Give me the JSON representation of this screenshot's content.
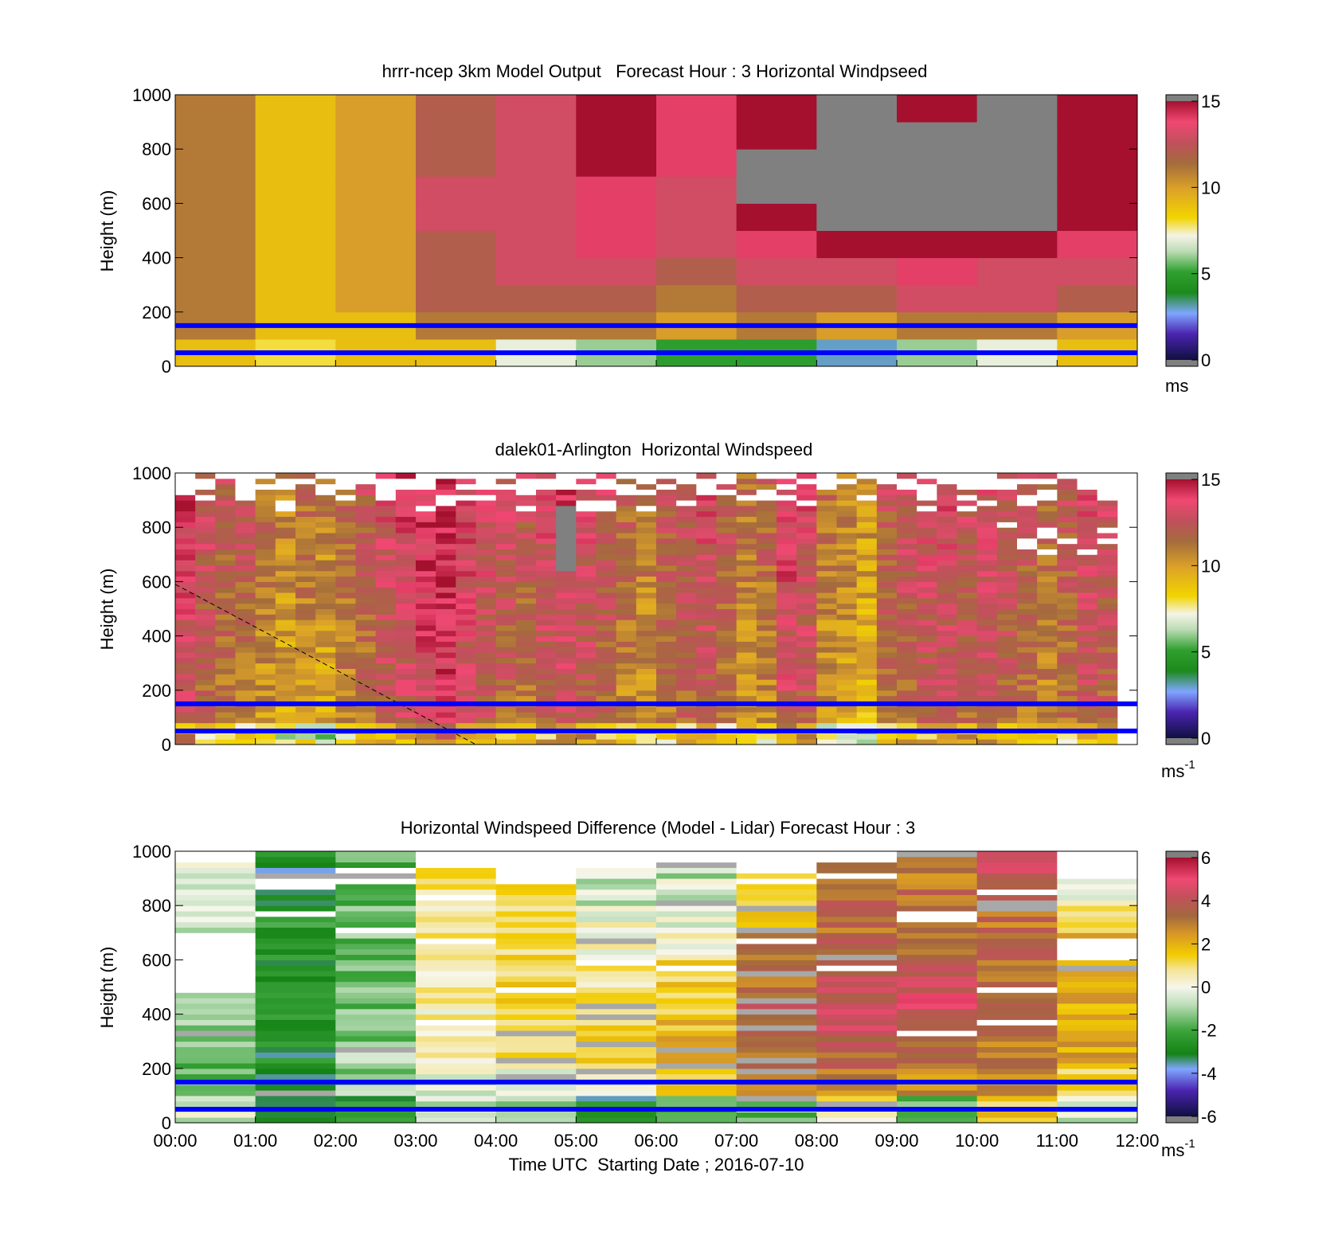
{
  "chart_data": [
    {
      "type": "heatmap",
      "title": "hrrr-ncep 3km Model Output   Forecast Hour : 3 Horizontal Windpseed",
      "xlabel": "",
      "ylabel": "Height (m)",
      "ylim": [
        0,
        1000
      ],
      "y_ticks": [
        "0",
        "200",
        "400",
        "600",
        "800",
        "1000"
      ],
      "xlim": [
        0,
        12
      ],
      "colorbar": {
        "min": 0,
        "max": 15,
        "ticks": [
          "0",
          "5",
          "10",
          "15"
        ],
        "unit": "ms",
        "unit_exp": ""
      },
      "reference_lines_m": [
        150,
        50
      ],
      "row_height_m": 100,
      "columns": [
        {
          "t": [
            0,
            1
          ],
          "rows": [
            9,
            11,
            11,
            11,
            11,
            11,
            11,
            11,
            11,
            11
          ]
        },
        {
          "t": [
            1,
            2
          ],
          "rows": [
            8,
            9,
            9,
            9,
            9,
            9,
            9,
            9,
            9,
            9
          ]
        },
        {
          "t": [
            2,
            3
          ],
          "rows": [
            9,
            9,
            10,
            10,
            10,
            10,
            10,
            10,
            10,
            10
          ]
        },
        {
          "t": [
            3,
            4
          ],
          "rows": [
            9,
            11,
            12,
            12,
            12,
            13,
            13,
            12,
            12,
            12
          ]
        },
        {
          "t": [
            4,
            5
          ],
          "rows": [
            7,
            11,
            12,
            13,
            13,
            13,
            13,
            13,
            13,
            13
          ]
        },
        {
          "t": [
            5,
            6
          ],
          "rows": [
            6,
            11,
            12,
            13,
            14,
            14,
            14,
            15,
            15,
            15
          ]
        },
        {
          "t": [
            6,
            7
          ],
          "rows": [
            5,
            10,
            11,
            12,
            13,
            13,
            13,
            14,
            14,
            14
          ]
        },
        {
          "t": [
            7,
            8
          ],
          "rows": [
            5,
            11,
            12,
            13,
            14,
            15,
            null,
            null,
            16,
            15
          ]
        },
        {
          "t": [
            8,
            9
          ],
          "rows": [
            3,
            10,
            12,
            13,
            15,
            null,
            null,
            null,
            null,
            null
          ]
        },
        {
          "t": [
            9,
            10
          ],
          "rows": [
            6,
            11,
            13,
            14,
            15,
            null,
            null,
            null,
            null,
            15
          ]
        },
        {
          "t": [
            10,
            11
          ],
          "rows": [
            7,
            11,
            13,
            13,
            15,
            null,
            null,
            null,
            null,
            null
          ]
        },
        {
          "t": [
            11,
            12
          ],
          "rows": [
            9,
            10,
            12,
            13,
            14,
            15,
            15,
            15,
            15,
            15
          ]
        }
      ]
    },
    {
      "type": "heatmap",
      "title": "dalek01-Arlington  Horizontal Windspeed",
      "xlabel": "",
      "ylabel": "Height (m)",
      "ylim": [
        0,
        1000
      ],
      "y_ticks": [
        "0",
        "200",
        "400",
        "600",
        "800",
        "1000"
      ],
      "xlim": [
        0,
        12
      ],
      "colorbar": {
        "min": 0,
        "max": 15,
        "ticks": [
          "0",
          "5",
          "10",
          "15"
        ],
        "unit": "ms",
        "unit_exp": "-1"
      },
      "reference_lines_m": [
        150,
        50
      ],
      "profile_interval_h": 0.25,
      "profile_speeds": [
        12.5,
        11.5,
        11,
        11,
        10,
        9.5,
        10,
        9.5,
        10.5,
        11,
        12,
        12.5,
        13,
        13.5,
        12.5,
        12,
        11.5,
        11,
        12,
        12.5,
        12,
        11.5,
        10.5,
        10,
        11,
        11.5,
        12,
        11,
        10,
        10.5,
        12.5,
        12,
        10,
        9.5,
        9,
        11,
        11.5,
        12,
        12,
        11.5,
        12,
        11.5,
        11,
        10.5,
        11,
        12,
        11.5,
        12.5
      ],
      "gap_region": {
        "t": [
          4.6,
          5.0
        ],
        "h": [
          630,
          880
        ]
      },
      "dashed_line": {
        "from": [
          0,
          590
        ],
        "to": [
          3.75,
          0
        ]
      }
    },
    {
      "type": "heatmap",
      "title": "Horizontal Windspeed Difference (Model - Lidar) Forecast Hour : 3",
      "xlabel": "Time UTC  Starting Date ; 2016-07-10",
      "ylabel": "Height (m)",
      "ylim": [
        0,
        1000
      ],
      "y_ticks": [
        "0",
        "200",
        "400",
        "600",
        "800",
        "1000"
      ],
      "xlim": [
        0,
        12
      ],
      "x_ticks": [
        "00:00",
        "01:00",
        "02:00",
        "03:00",
        "04:00",
        "05:00",
        "06:00",
        "07:00",
        "08:00",
        "09:00",
        "10:00",
        "11:00",
        "12:00"
      ],
      "colorbar": {
        "min": -6,
        "max": 6,
        "ticks": [
          "-6",
          "-4",
          "-2",
          "0",
          "2",
          "4",
          "6"
        ],
        "unit": "ms",
        "unit_exp": "-1"
      },
      "reference_lines_m": [
        150,
        50
      ],
      "columns": [
        {
          "t": [
            0,
            1
          ],
          "top_m": 950,
          "gap": [
            480,
            700
          ],
          "mean_by_height": [
            -0.5,
            -1.5,
            -1.5,
            -1.0,
            -0.8,
            -0.5,
            -0.4,
            -0.6,
            -0.4,
            -0.3
          ]
        },
        {
          "t": [
            1,
            2
          ],
          "top_m": 1000,
          "gap": [
            860,
            900
          ],
          "mean_by_height": [
            -3.2,
            -3.0,
            -2.8,
            -2.8,
            -2.6,
            -2.6,
            -2.6,
            -2.6,
            -2.6,
            -3.0
          ]
        },
        {
          "t": [
            2,
            3
          ],
          "top_m": 1000,
          "gap": [
            870,
            900
          ],
          "mean_by_height": [
            -2.5,
            -1.2,
            -1.0,
            -1.2,
            -1.5,
            -1.5,
            -1.5,
            -1.5,
            -1.5,
            -1.8
          ]
        },
        {
          "t": [
            3,
            4
          ],
          "top_m": 930,
          "gap": null,
          "mean_by_height": [
            -0.5,
            -0.3,
            0.3,
            0.4,
            0.5,
            0.5,
            0.6,
            0.6,
            0.8,
            1.2
          ]
        },
        {
          "t": [
            4,
            5
          ],
          "top_m": 880,
          "gap": null,
          "mean_by_height": [
            -1.5,
            -0.5,
            1.2,
            1.4,
            1.4,
            1.2,
            1.0,
            1.0,
            1.5,
            1.5
          ]
        },
        {
          "t": [
            5,
            6
          ],
          "top_m": 930,
          "gap": null,
          "mean_by_height": [
            -3.0,
            -0.2,
            1.2,
            1.2,
            0.8,
            0.5,
            0.2,
            0.0,
            -0.5,
            -0.5
          ]
        },
        {
          "t": [
            6,
            7
          ],
          "top_m": 950,
          "gap": null,
          "mean_by_height": [
            -2.0,
            1.5,
            1.8,
            1.8,
            1.6,
            1.2,
            0.0,
            -0.3,
            -0.5,
            -1.0
          ]
        },
        {
          "t": [
            7,
            8
          ],
          "top_m": 930,
          "gap": null,
          "mean_by_height": [
            -1.5,
            2.5,
            3.0,
            3.5,
            3.5,
            3.2,
            3.0,
            2.0,
            1.5,
            0.5
          ]
        },
        {
          "t": [
            8,
            9
          ],
          "top_m": 950,
          "gap": null,
          "mean_by_height": [
            0.5,
            2.8,
            3.5,
            4.0,
            4.0,
            3.8,
            3.5,
            3.2,
            3.5,
            4.0
          ]
        },
        {
          "t": [
            9,
            10
          ],
          "top_m": 1000,
          "gap": [
            730,
            770
          ],
          "mean_by_height": [
            -1.5,
            2.5,
            3.5,
            4.0,
            4.5,
            4.0,
            3.0,
            3.0,
            3.2,
            3.0
          ]
        },
        {
          "t": [
            10,
            11
          ],
          "top_m": 1000,
          "gap": null,
          "mean_by_height": [
            1.5,
            2.5,
            3.0,
            3.2,
            3.0,
            3.0,
            3.2,
            3.2,
            3.5,
            4.5
          ]
        },
        {
          "t": [
            11,
            12
          ],
          "top_m": 900,
          "gap": [
            600,
            680
          ],
          "mean_by_height": [
            -0.5,
            1.5,
            2.0,
            2.0,
            2.0,
            2.2,
            2.5,
            1.0,
            0.0,
            0.5
          ]
        }
      ]
    }
  ]
}
